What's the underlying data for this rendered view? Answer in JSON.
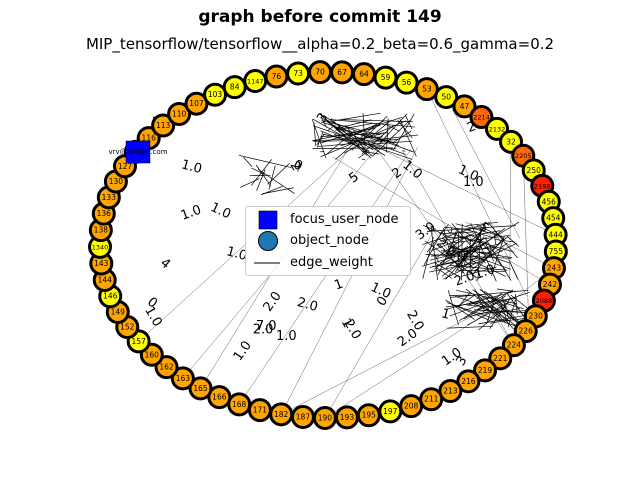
{
  "title": "graph before commit 149",
  "subtitle": "MIP_tensorflow/tensorflow__alpha=0.2_beta=0.6_gamma=0.2",
  "colors": {
    "yellow": "#ffff00",
    "orange": "#ffa500",
    "dark_orange": "#ff6a00",
    "red": "#ff2000",
    "focus_blue": "#0000ff",
    "object_blue": "#1f77b4"
  },
  "focus_label": "vrv@google.com",
  "legend": {
    "entries": [
      {
        "label": "focus_user_node",
        "icon": "blue-square"
      },
      {
        "label": "object_node",
        "icon": "blue-circle"
      },
      {
        "label": "edge_weight",
        "icon": "black-line"
      }
    ]
  },
  "chart_data": {
    "type": "network-graph",
    "layout": "circular",
    "title": "graph before commit 149",
    "subtitle": "MIP_tensorflow/tensorflow__alpha=0.2_beta=0.6_gamma=0.2",
    "focus_node": "vrv@google.com",
    "nodes": [
      {
        "id": "70",
        "color": "orange"
      },
      {
        "id": "67",
        "color": "orange"
      },
      {
        "id": "64",
        "color": "orange"
      },
      {
        "id": "59",
        "color": "yellow"
      },
      {
        "id": "56",
        "color": "yellow"
      },
      {
        "id": "53",
        "color": "orange"
      },
      {
        "id": "50",
        "color": "yellow"
      },
      {
        "id": "47",
        "color": "orange"
      },
      {
        "id": "2214",
        "color": "dark_orange"
      },
      {
        "id": "2132",
        "color": "yellow"
      },
      {
        "id": "32",
        "color": "yellow"
      },
      {
        "id": "2205",
        "color": "dark_orange"
      },
      {
        "id": "250",
        "color": "yellow"
      },
      {
        "id": "2198",
        "color": "red"
      },
      {
        "id": "456",
        "color": "yellow"
      },
      {
        "id": "454",
        "color": "yellow"
      },
      {
        "id": "444",
        "color": "yellow"
      },
      {
        "id": "755",
        "color": "yellow"
      },
      {
        "id": "243",
        "color": "orange"
      },
      {
        "id": "242",
        "color": "orange"
      },
      {
        "id": "2088",
        "color": "red"
      },
      {
        "id": "230",
        "color": "orange"
      },
      {
        "id": "226",
        "color": "orange"
      },
      {
        "id": "224",
        "color": "orange"
      },
      {
        "id": "221",
        "color": "orange"
      },
      {
        "id": "219",
        "color": "orange"
      },
      {
        "id": "216",
        "color": "orange"
      },
      {
        "id": "213",
        "color": "orange"
      },
      {
        "id": "211",
        "color": "orange"
      },
      {
        "id": "208",
        "color": "orange"
      },
      {
        "id": "197",
        "color": "yellow"
      },
      {
        "id": "195",
        "color": "orange"
      },
      {
        "id": "193",
        "color": "orange"
      },
      {
        "id": "190",
        "color": "orange"
      },
      {
        "id": "187",
        "color": "orange"
      },
      {
        "id": "182",
        "color": "orange"
      },
      {
        "id": "171",
        "color": "orange"
      },
      {
        "id": "168",
        "color": "orange"
      },
      {
        "id": "166",
        "color": "orange"
      },
      {
        "id": "165",
        "color": "orange"
      },
      {
        "id": "163",
        "color": "orange"
      },
      {
        "id": "162",
        "color": "orange"
      },
      {
        "id": "160",
        "color": "orange"
      },
      {
        "id": "157",
        "color": "yellow"
      },
      {
        "id": "152",
        "color": "orange"
      },
      {
        "id": "149",
        "color": "orange"
      },
      {
        "id": "146",
        "color": "yellow"
      },
      {
        "id": "144",
        "color": "orange"
      },
      {
        "id": "143",
        "color": "orange"
      },
      {
        "id": "1340",
        "color": "yellow"
      },
      {
        "id": "138",
        "color": "orange"
      },
      {
        "id": "136",
        "color": "orange"
      },
      {
        "id": "133",
        "color": "orange"
      },
      {
        "id": "130",
        "color": "orange"
      },
      {
        "id": "127",
        "color": "orange"
      },
      {
        "id": "119",
        "color": "yellow"
      },
      {
        "id": "116",
        "color": "orange"
      },
      {
        "id": "113",
        "color": "orange"
      },
      {
        "id": "110",
        "color": "orange"
      },
      {
        "id": "107",
        "color": "orange"
      },
      {
        "id": "103",
        "color": "yellow"
      },
      {
        "id": "84",
        "color": "yellow"
      },
      {
        "id": "1147",
        "color": "yellow"
      },
      {
        "id": "76",
        "color": "orange"
      },
      {
        "id": "73",
        "color": "yellow"
      }
    ],
    "edge_weight_labels": [
      "3.0",
      "1.0",
      "1.0",
      "2.0",
      "1.0",
      "1.0",
      "2.0",
      "1.0",
      "2.0",
      "2.0",
      "7.0",
      "0",
      "0",
      "0",
      "1",
      "1.0",
      "1.0",
      "2.0",
      "1.0",
      "1.0",
      "2.0",
      "3",
      "2.0",
      "2.0",
      "5",
      "1.0",
      "2.0",
      "1.0",
      "4",
      "3",
      "2",
      "1",
      "2",
      "1",
      "2.0",
      "1.0",
      "5",
      "2.0",
      "1.0"
    ]
  }
}
